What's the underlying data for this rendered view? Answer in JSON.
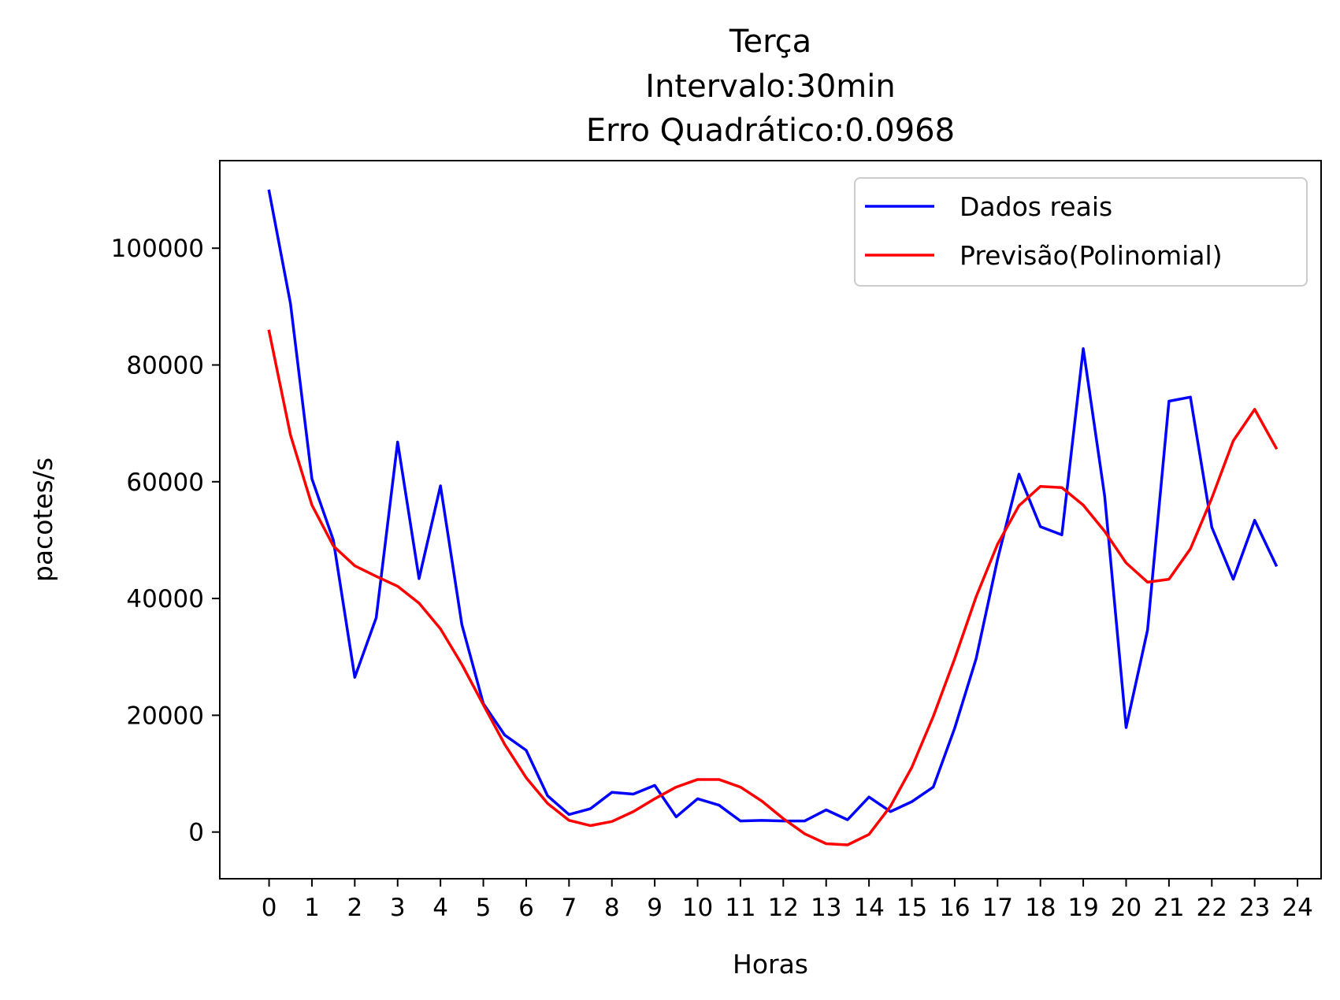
{
  "chart_data": {
    "type": "line",
    "title_lines": [
      "Terça",
      "Intervalo:30min",
      "Erro Quadrático:0.0968"
    ],
    "xlabel": "Horas",
    "ylabel": "pacotes/s",
    "xlim": [
      -1.15,
      24.55
    ],
    "ylim": [
      -8000,
      115000
    ],
    "x_ticks": [
      0,
      1,
      2,
      3,
      4,
      5,
      6,
      7,
      8,
      9,
      10,
      11,
      12,
      13,
      14,
      15,
      16,
      17,
      18,
      19,
      20,
      21,
      22,
      23,
      24
    ],
    "x_tick_labels": [
      "0",
      "1",
      "2",
      "3",
      "4",
      "5",
      "6",
      "7",
      "8",
      "9",
      "10",
      "11",
      "12",
      "13",
      "14",
      "15",
      "16",
      "17",
      "18",
      "19",
      "20",
      "21",
      "22",
      "23",
      "24"
    ],
    "y_ticks": [
      0,
      20000,
      40000,
      60000,
      80000,
      100000
    ],
    "y_tick_labels": [
      "0",
      "20000",
      "40000",
      "60000",
      "80000",
      "100000"
    ],
    "grid": false,
    "legend_position": "top-right",
    "x": [
      0,
      0.5,
      1,
      1.5,
      2,
      2.5,
      3,
      3.5,
      4,
      4.5,
      5,
      5.5,
      6,
      6.5,
      7,
      7.5,
      8,
      8.5,
      9,
      9.5,
      10,
      10.5,
      11,
      11.5,
      12,
      12.5,
      13,
      13.5,
      14,
      14.5,
      15,
      15.5,
      16,
      16.5,
      17,
      17.5,
      18,
      18.5,
      19,
      19.5,
      20,
      20.5,
      21,
      21.5,
      22,
      22.5,
      23,
      23.5
    ],
    "series": [
      {
        "name": "Dados reais",
        "color": "#0000ff",
        "values": [
          109800,
          90500,
          60500,
          50000,
          26500,
          36700,
          66800,
          43400,
          59300,
          35500,
          22000,
          16600,
          14000,
          6200,
          3000,
          4000,
          6800,
          6500,
          8000,
          2600,
          5700,
          4600,
          1900,
          2000,
          1900,
          1900,
          3800,
          2100,
          6000,
          3500,
          5200,
          7700,
          17800,
          29700,
          46700,
          61300,
          52300,
          50900,
          82800,
          57500,
          17900,
          34600,
          73800,
          74500,
          52200,
          43300,
          53400,
          45700
        ]
      },
      {
        "name": "Previsão(Polinomial)",
        "color": "#ff0000",
        "values": [
          85800,
          68000,
          56000,
          49000,
          45600,
          43800,
          42100,
          39200,
          34800,
          28700,
          21800,
          15000,
          9300,
          4900,
          2000,
          1100,
          1800,
          3500,
          5700,
          7700,
          9000,
          9000,
          7700,
          5300,
          2300,
          -300,
          -2000,
          -2200,
          -400,
          4400,
          11100,
          19800,
          29700,
          40300,
          49300,
          55900,
          59200,
          59000,
          56000,
          51500,
          46100,
          42800,
          43300,
          48500,
          57200,
          67000,
          72400,
          65800
        ]
      }
    ]
  }
}
